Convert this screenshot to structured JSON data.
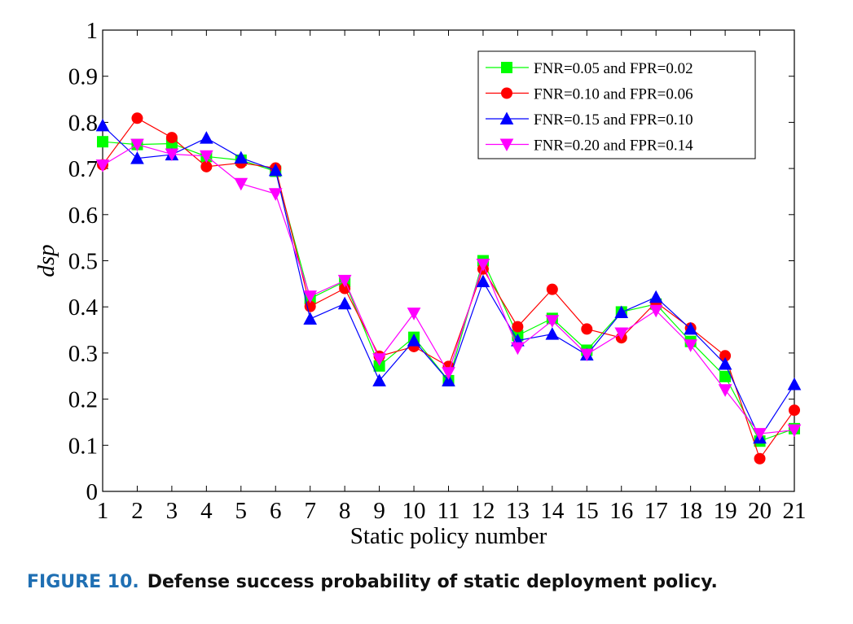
{
  "chart_data": {
    "type": "line",
    "title": "",
    "xlabel": "Static policy number",
    "ylabel": "dsp",
    "xlim": [
      1,
      21
    ],
    "ylim": [
      0,
      1
    ],
    "x_ticks": [
      "1",
      "2",
      "3",
      "4",
      "5",
      "6",
      "7",
      "8",
      "9",
      "10",
      "11",
      "12",
      "13",
      "14",
      "15",
      "16",
      "17",
      "18",
      "19",
      "20",
      "21"
    ],
    "y_ticks": [
      "0",
      "0.1",
      "0.2",
      "0.3",
      "0.4",
      "0.5",
      "0.6",
      "0.7",
      "0.8",
      "0.9",
      "1"
    ],
    "x": [
      1,
      2,
      3,
      4,
      5,
      6,
      7,
      8,
      9,
      10,
      11,
      12,
      13,
      14,
      15,
      16,
      17,
      18,
      19,
      20,
      21
    ],
    "grid": false,
    "legend_position": "top-right",
    "series": [
      {
        "name": "FNR=0.05 and FPR=0.02",
        "color": "#00ff00",
        "marker": "square",
        "values": [
          0.758,
          0.752,
          0.754,
          0.726,
          0.718,
          0.694,
          0.418,
          0.455,
          0.272,
          0.334,
          0.24,
          0.5,
          0.338,
          0.375,
          0.306,
          0.389,
          0.406,
          0.325,
          0.249,
          0.109,
          0.136
        ]
      },
      {
        "name": "FNR=0.10 and FPR=0.06",
        "color": "#ff0000",
        "marker": "circle",
        "values": [
          0.708,
          0.809,
          0.767,
          0.704,
          0.712,
          0.701,
          0.401,
          0.44,
          0.293,
          0.314,
          0.271,
          0.482,
          0.357,
          0.438,
          0.352,
          0.333,
          0.41,
          0.354,
          0.294,
          0.071,
          0.176
        ]
      },
      {
        "name": "FNR=0.15 and FPR=0.10",
        "color": "#0000ff",
        "marker": "triangle-up",
        "values": [
          0.793,
          0.722,
          0.73,
          0.766,
          0.723,
          0.696,
          0.374,
          0.407,
          0.24,
          0.327,
          0.24,
          0.455,
          0.327,
          0.341,
          0.296,
          0.388,
          0.421,
          0.352,
          0.276,
          0.116,
          0.232
        ]
      },
      {
        "name": "FNR=0.20 and FPR=0.14",
        "color": "#ff00ff",
        "marker": "triangle-down",
        "values": [
          0.707,
          0.752,
          0.731,
          0.727,
          0.667,
          0.645,
          0.423,
          0.457,
          0.287,
          0.386,
          0.257,
          0.492,
          0.311,
          0.37,
          0.297,
          0.343,
          0.392,
          0.317,
          0.22,
          0.125,
          0.133
        ]
      }
    ]
  },
  "caption": {
    "figure_number": "FIGURE 10.",
    "text": "Defense success probability of static deployment policy."
  }
}
